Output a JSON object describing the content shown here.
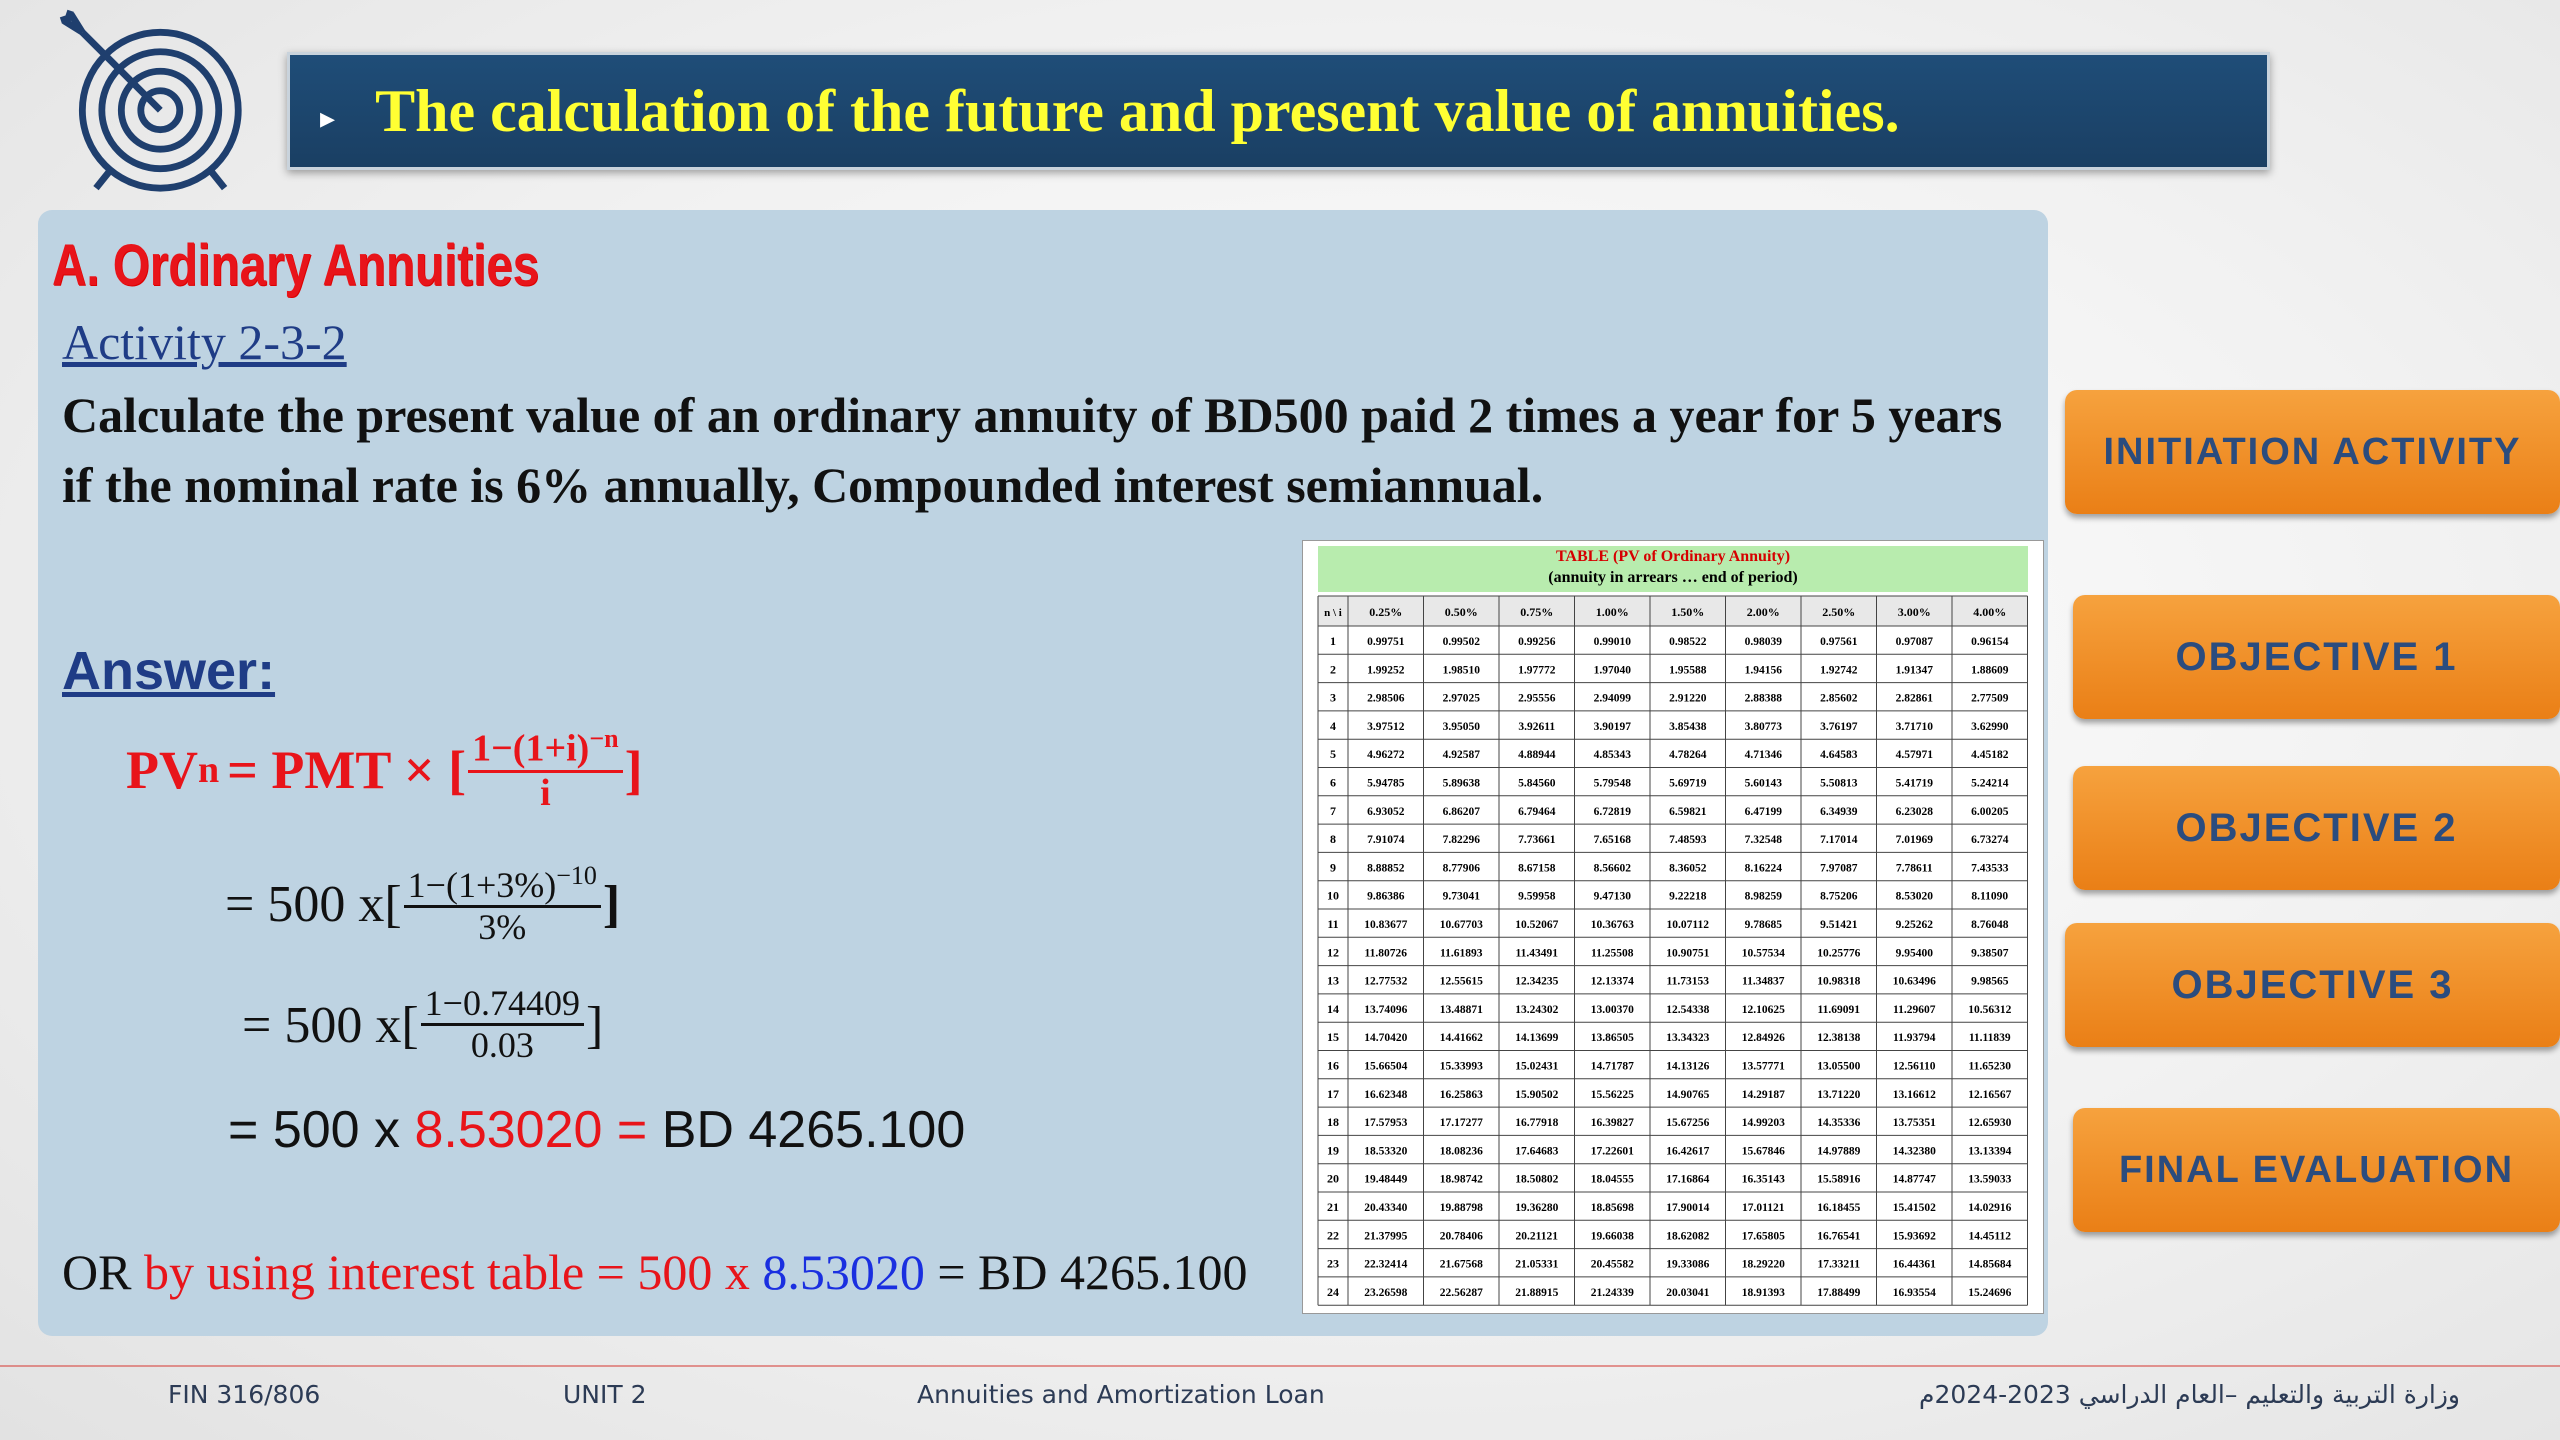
{
  "header": {
    "bullet": "▸",
    "title": "The calculation of the future and present value of annuities."
  },
  "section": {
    "heading": "A.   Ordinary Annuities",
    "activity": "Activity 2-3-2",
    "question": "Calculate the present value of an ordinary annuity of BD500 paid 2 times a year for 5 years if the nominal rate is 6% annually, Compounded  interest semiannual."
  },
  "answer": {
    "label": "Answer:",
    "formula_lhs": "PV",
    "formula_sub": "n",
    "formula_eq": "= PMT × [",
    "formula_num": "1−(1+i)",
    "formula_exp": "−n",
    "formula_den": "i",
    "formula_close": "]",
    "step1_prefix": "= 500 x[",
    "step1_num": "1−(1+3%)",
    "step1_exp": "−10",
    "step1_den": "3%",
    "step1_close": "]",
    "step2_prefix": "= 500 x[",
    "step2_num": "1−0.74409",
    "step2_den": "0.03",
    "step2_close": "]",
    "step3_prefix": "= 500 x ",
    "step3_factor": "8.53020",
    "step3_eq": " = ",
    "step3_result": "BD 4265.100",
    "or_prefix": "OR ",
    "or_method": "by using interest table = ",
    "or_pmt": "500 x ",
    "or_factor": "8.53020",
    "or_result": " = BD 4265.100"
  },
  "pv_table": {
    "title": "TABLE (PV of Ordinary Annuity)",
    "subtitle": "(annuity in arrears … end of period)",
    "corner": "n \\ i",
    "rates": [
      "0.25%",
      "0.50%",
      "0.75%",
      "1.00%",
      "1.50%",
      "2.00%",
      "2.50%",
      "3.00%",
      "4.00%"
    ],
    "rows": [
      [
        "1",
        "0.99751",
        "0.99502",
        "0.99256",
        "0.99010",
        "0.98522",
        "0.98039",
        "0.97561",
        "0.97087",
        "0.96154"
      ],
      [
        "2",
        "1.99252",
        "1.98510",
        "1.97772",
        "1.97040",
        "1.95588",
        "1.94156",
        "1.92742",
        "1.91347",
        "1.88609"
      ],
      [
        "3",
        "2.98506",
        "2.97025",
        "2.95556",
        "2.94099",
        "2.91220",
        "2.88388",
        "2.85602",
        "2.82861",
        "2.77509"
      ],
      [
        "4",
        "3.97512",
        "3.95050",
        "3.92611",
        "3.90197",
        "3.85438",
        "3.80773",
        "3.76197",
        "3.71710",
        "3.62990"
      ],
      [
        "5",
        "4.96272",
        "4.92587",
        "4.88944",
        "4.85343",
        "4.78264",
        "4.71346",
        "4.64583",
        "4.57971",
        "4.45182"
      ],
      [
        "6",
        "5.94785",
        "5.89638",
        "5.84560",
        "5.79548",
        "5.69719",
        "5.60143",
        "5.50813",
        "5.41719",
        "5.24214"
      ],
      [
        "7",
        "6.93052",
        "6.86207",
        "6.79464",
        "6.72819",
        "6.59821",
        "6.47199",
        "6.34939",
        "6.23028",
        "6.00205"
      ],
      [
        "8",
        "7.91074",
        "7.82296",
        "7.73661",
        "7.65168",
        "7.48593",
        "7.32548",
        "7.17014",
        "7.01969",
        "6.73274"
      ],
      [
        "9",
        "8.88852",
        "8.77906",
        "8.67158",
        "8.56602",
        "8.36052",
        "8.16224",
        "7.97087",
        "7.78611",
        "7.43533"
      ],
      [
        "10",
        "9.86386",
        "9.73041",
        "9.59958",
        "9.47130",
        "9.22218",
        "8.98259",
        "8.75206",
        "8.53020",
        "8.11090"
      ],
      [
        "11",
        "10.83677",
        "10.67703",
        "10.52067",
        "10.36763",
        "10.07112",
        "9.78685",
        "9.51421",
        "9.25262",
        "8.76048"
      ],
      [
        "12",
        "11.80726",
        "11.61893",
        "11.43491",
        "11.25508",
        "10.90751",
        "10.57534",
        "10.25776",
        "9.95400",
        "9.38507"
      ],
      [
        "13",
        "12.77532",
        "12.55615",
        "12.34235",
        "12.13374",
        "11.73153",
        "11.34837",
        "10.98318",
        "10.63496",
        "9.98565"
      ],
      [
        "14",
        "13.74096",
        "13.48871",
        "13.24302",
        "13.00370",
        "12.54338",
        "12.10625",
        "11.69091",
        "11.29607",
        "10.56312"
      ],
      [
        "15",
        "14.70420",
        "14.41662",
        "14.13699",
        "13.86505",
        "13.34323",
        "12.84926",
        "12.38138",
        "11.93794",
        "11.11839"
      ],
      [
        "16",
        "15.66504",
        "15.33993",
        "15.02431",
        "14.71787",
        "14.13126",
        "13.57771",
        "13.05500",
        "12.56110",
        "11.65230"
      ],
      [
        "17",
        "16.62348",
        "16.25863",
        "15.90502",
        "15.56225",
        "14.90765",
        "14.29187",
        "13.71220",
        "13.16612",
        "12.16567"
      ],
      [
        "18",
        "17.57953",
        "17.17277",
        "16.77918",
        "16.39827",
        "15.67256",
        "14.99203",
        "14.35336",
        "13.75351",
        "12.65930"
      ],
      [
        "19",
        "18.53320",
        "18.08236",
        "17.64683",
        "17.22601",
        "16.42617",
        "15.67846",
        "14.97889",
        "14.32380",
        "13.13394"
      ],
      [
        "20",
        "19.48449",
        "18.98742",
        "18.50802",
        "18.04555",
        "17.16864",
        "16.35143",
        "15.58916",
        "14.87747",
        "13.59033"
      ],
      [
        "21",
        "20.43340",
        "19.88798",
        "19.36280",
        "18.85698",
        "17.90014",
        "17.01121",
        "16.18455",
        "15.41502",
        "14.02916"
      ],
      [
        "22",
        "21.37995",
        "20.78406",
        "20.21121",
        "19.66038",
        "18.62082",
        "17.65805",
        "16.76541",
        "15.93692",
        "14.45112"
      ],
      [
        "23",
        "22.32414",
        "21.67568",
        "21.05331",
        "20.45582",
        "19.33086",
        "18.29220",
        "17.33211",
        "16.44361",
        "14.85684"
      ],
      [
        "24",
        "23.26598",
        "22.56287",
        "21.88915",
        "21.24339",
        "20.03041",
        "18.91393",
        "17.88499",
        "16.93554",
        "15.24696"
      ]
    ]
  },
  "nav": {
    "initiation": "INITIATION ACTIVITY",
    "objective1": "OBJECTIVE 1",
    "objective2": "OBJECTIVE 2",
    "objective3": "OBJECTIVE 3",
    "final": "FINAL EVALUATION"
  },
  "footer": {
    "course_code": "FIN 316/806",
    "unit": "UNIT 2",
    "topic": "Annuities and Amortization Loan",
    "ministry": "وزارة التربية والتعليم –العام الدراسي 2023-2024م"
  },
  "colors": {
    "title_bg": "#1f4d78",
    "title_text": "#ffff33",
    "panel_bg": "#bed3e2",
    "accent_red": "#e8141a",
    "accent_blue": "#1a2fe0",
    "nav_orange": "#ea7f16",
    "nav_text": "#2b4c7e"
  }
}
